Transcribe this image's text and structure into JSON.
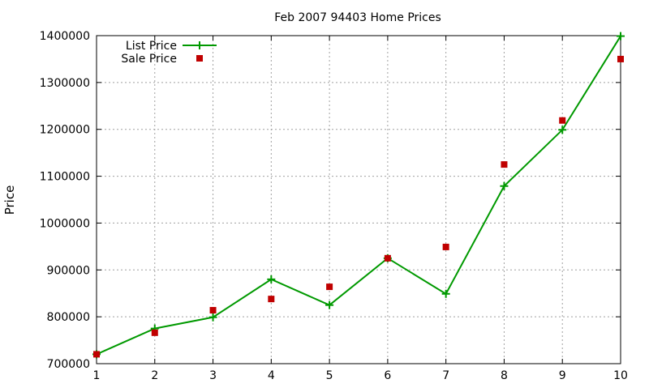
{
  "chart_data": {
    "type": "line",
    "title": "Feb 2007 94403 Home Prices",
    "xlabel": "",
    "ylabel": "Price",
    "xlim": [
      1,
      10
    ],
    "ylim": [
      700000,
      1400000
    ],
    "x_ticks": [
      1,
      2,
      3,
      4,
      5,
      6,
      7,
      8,
      9,
      10
    ],
    "y_ticks": [
      700000,
      800000,
      900000,
      1000000,
      1100000,
      1200000,
      1300000,
      1400000
    ],
    "grid": true,
    "legend_position": "top-left",
    "series": [
      {
        "name": "List Price",
        "style": "line+cross",
        "color": "#009900",
        "x": [
          1,
          2,
          3,
          4,
          5,
          6,
          7,
          8,
          9,
          10
        ],
        "values": [
          720000,
          775000,
          799000,
          880000,
          825000,
          925000,
          849000,
          1079000,
          1199000,
          1399000
        ]
      },
      {
        "name": "Sale Price",
        "style": "square-markers",
        "color": "#c00000",
        "x": [
          1,
          2,
          3,
          4,
          5,
          6,
          7,
          8,
          9,
          10
        ],
        "values": [
          720000,
          766000,
          814000,
          838000,
          864000,
          925000,
          949000,
          1125000,
          1219000,
          1350000
        ]
      }
    ]
  }
}
